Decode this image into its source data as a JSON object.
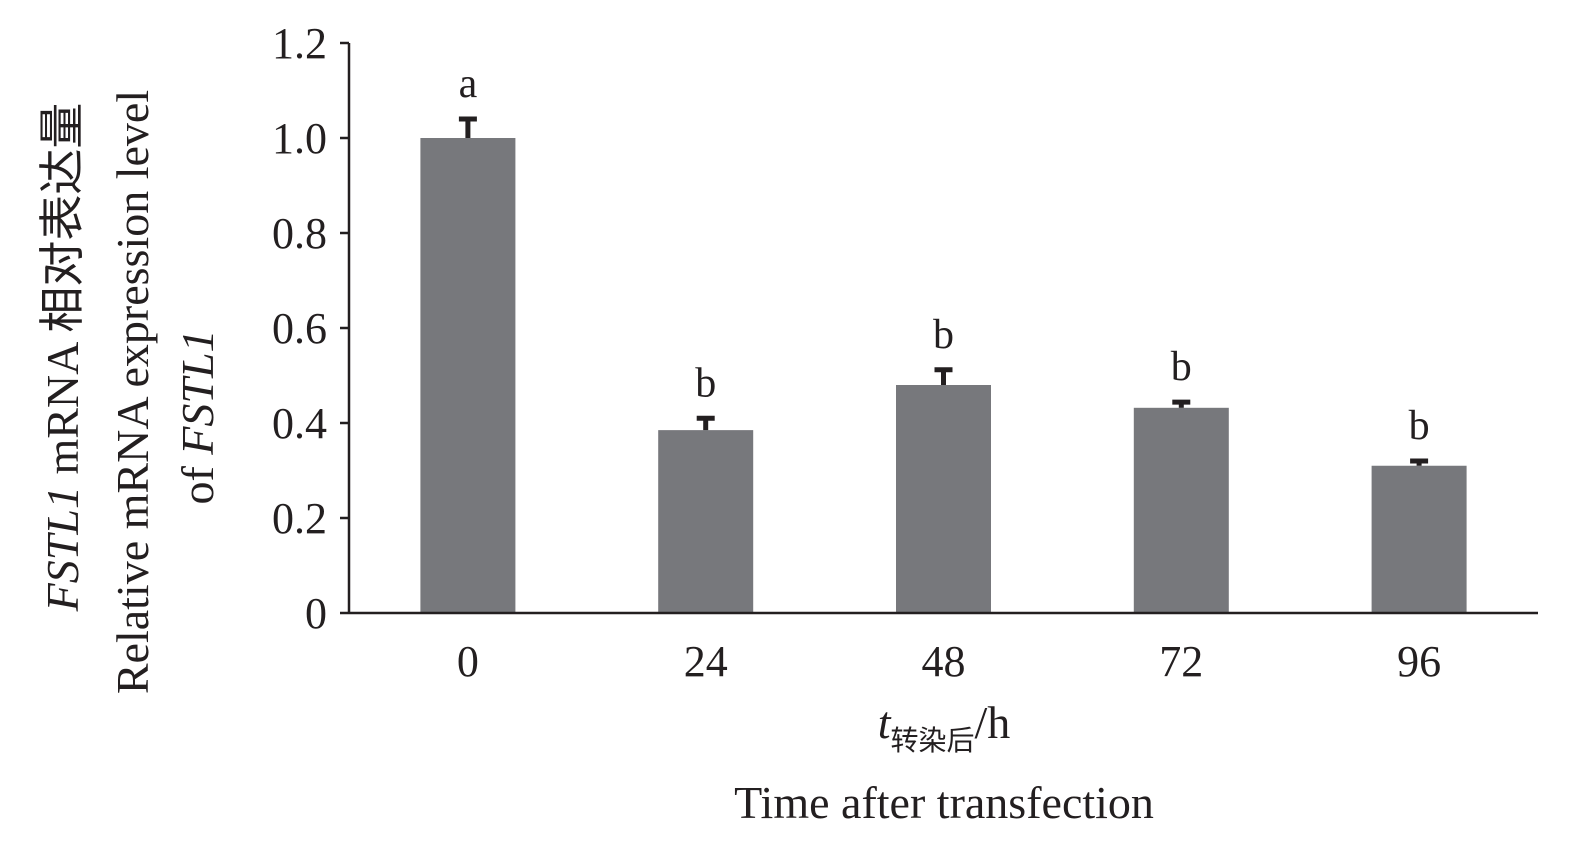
{
  "chart_data": {
    "type": "bar",
    "categories": [
      "0",
      "24",
      "48",
      "72",
      "96"
    ],
    "values": [
      1.0,
      0.385,
      0.48,
      0.432,
      0.31
    ],
    "errors": [
      0.04,
      0.025,
      0.032,
      0.012,
      0.01
    ],
    "significance": [
      "a",
      "b",
      "b",
      "b",
      "b"
    ],
    "ylim": [
      0,
      1.2
    ],
    "yticks": [
      "0",
      "0.2",
      "0.4",
      "0.6",
      "0.8",
      "1.0",
      "1.2"
    ],
    "ylabel": {
      "line1_gene": "FSTL1",
      "line1_rest": " mRNA 相对表达量",
      "line2": "Relative mRNA expression level",
      "line3_prefix": "of ",
      "line3_gene": "FSTL1"
    },
    "xlabel": {
      "var": "t",
      "subscript": "转染后",
      "unit": "/h",
      "english": "Time after transfection"
    },
    "bar_color": "#77787c",
    "axis_color": "#231f20"
  }
}
